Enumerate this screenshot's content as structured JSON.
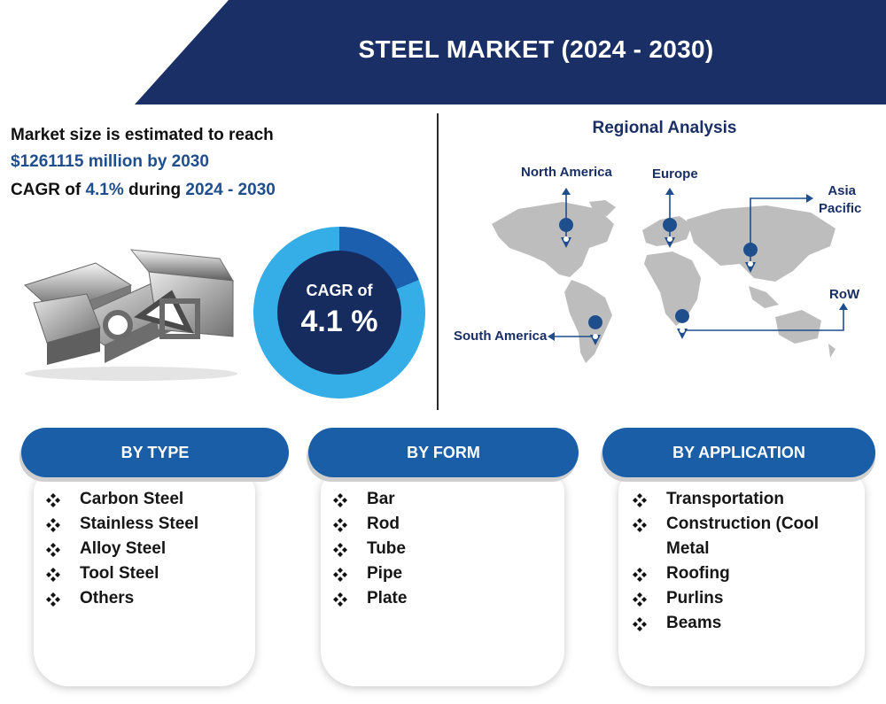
{
  "header": {
    "title": "STEEL MARKET (2024 - 2030)",
    "band_color": "#1a2f66"
  },
  "summary": {
    "line1": "Market size is estimated to reach",
    "market_value": "$1261115 million by 2030",
    "cagr_prefix": "CAGR of ",
    "cagr_value": "4.1%",
    "cagr_mid": " during ",
    "cagr_period": "2024 - 2030"
  },
  "donut": {
    "label": "CAGR of",
    "value": "4.1 %",
    "colors": {
      "ring": "#35ade6",
      "segment": "#1c5fae",
      "center": "#162c5f"
    }
  },
  "map": {
    "title": "Regional Analysis",
    "regions": [
      "North America",
      "Europe",
      "Asia Pacific",
      "South America",
      "RoW"
    ],
    "asia_line1": "Asia",
    "asia_line2": "Pacific",
    "land_color": "#bdbdbd",
    "marker_color": "#1f4e8c"
  },
  "sections": [
    {
      "title": "BY TYPE",
      "items": [
        "Carbon Steel",
        "Stainless Steel",
        "Alloy Steel",
        "Tool Steel",
        "Others"
      ]
    },
    {
      "title": "BY FORM",
      "items": [
        "Bar",
        "Rod",
        "Tube",
        "Pipe",
        "Plate"
      ]
    },
    {
      "title": "BY APPLICATION",
      "items": [
        "Transportation",
        "Construction (Cool",
        "Metal",
        "Roofing",
        "Purlins",
        "Beams"
      ]
    }
  ],
  "bullet_icon": "four-diamond-bullet-icon",
  "accent_color": "#1a5ea8"
}
